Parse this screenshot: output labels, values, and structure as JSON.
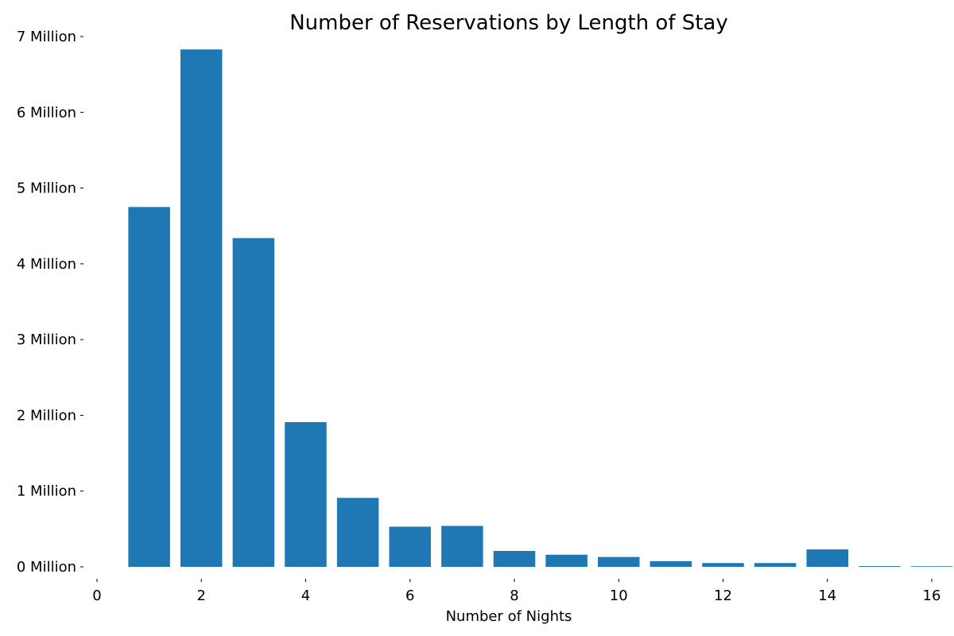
{
  "chart_data": {
    "type": "bar",
    "title": "Number of Reservations by Length of Stay",
    "xlabel": "Number of Nights",
    "ylabel": "",
    "x": [
      1,
      2,
      3,
      4,
      5,
      6,
      7,
      8,
      9,
      10,
      11,
      12,
      13,
      14,
      15,
      16
    ],
    "values": [
      4750000,
      6830000,
      4340000,
      1910000,
      910000,
      530000,
      540000,
      210000,
      160000,
      130000,
      75000,
      50000,
      50000,
      230000,
      10000,
      8000
    ],
    "xlim": [
      0,
      16
    ],
    "ylim": [
      0,
      7000000
    ],
    "x_ticks": [
      "0",
      "2",
      "4",
      "6",
      "8",
      "10",
      "12",
      "14",
      "16"
    ],
    "y_ticks": [
      "0 Million",
      "1 Million",
      "2 Million",
      "3 Million",
      "4 Million",
      "5 Million",
      "6 Million",
      "7 Million"
    ],
    "bar_color": "#1f77b4",
    "grid": false,
    "legend": "none"
  }
}
